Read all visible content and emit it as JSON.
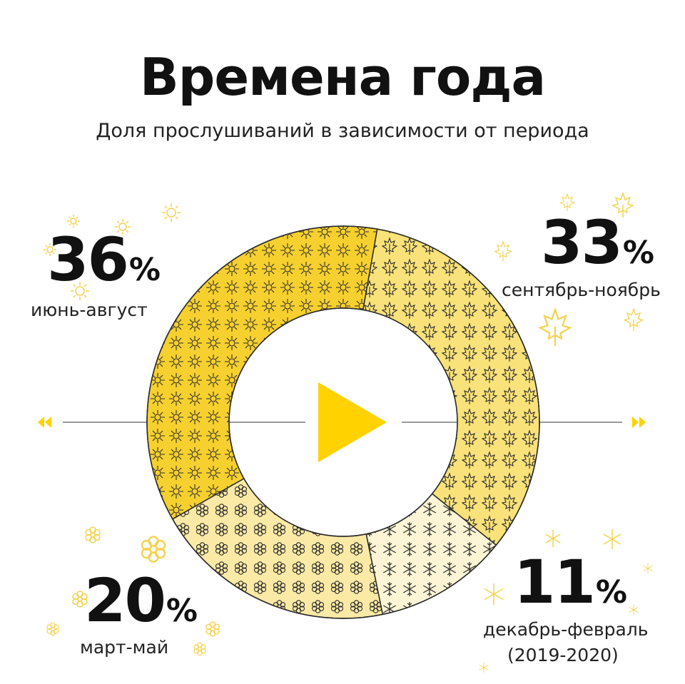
{
  "title": "Времена года",
  "subtitle": "Доля прослушиваний в зависимости от периода",
  "percent_sign": "%",
  "colors": {
    "summer": "#F6D02E",
    "autumn": "#F9E27A",
    "winter": "#FDF5D6",
    "spring": "#FBEAA6",
    "outline": "#2a2a2a",
    "accent": "#FFD200",
    "deco": "#F3D34F"
  },
  "icons": [
    "sun-icon",
    "maple-leaf-icon",
    "snowflake-icon",
    "flower-icon",
    "play-icon",
    "rewind-icon",
    "fast-forward-icon"
  ],
  "chart_data": {
    "type": "pie",
    "donut": true,
    "title": "Времена года",
    "subtitle": "Доля прослушиваний в зависимости от периода",
    "unit": "%",
    "slices": [
      {
        "label": "июнь-август",
        "value": 36
      },
      {
        "label": "сентябрь-ноябрь",
        "value": 33
      },
      {
        "label": "декабрь-февраль (2019-2020)",
        "value": 11
      },
      {
        "label": "март-май",
        "value": 20
      }
    ]
  },
  "labels": {
    "summer": {
      "value": "36",
      "period": "июнь-август"
    },
    "autumn": {
      "value": "33",
      "period": "сентябрь-ноябрь"
    },
    "winter": {
      "value": "11",
      "period_line1": "декабрь-февраль",
      "period_line2": "(2019-2020)"
    },
    "spring": {
      "value": "20",
      "period": "март-май"
    }
  }
}
